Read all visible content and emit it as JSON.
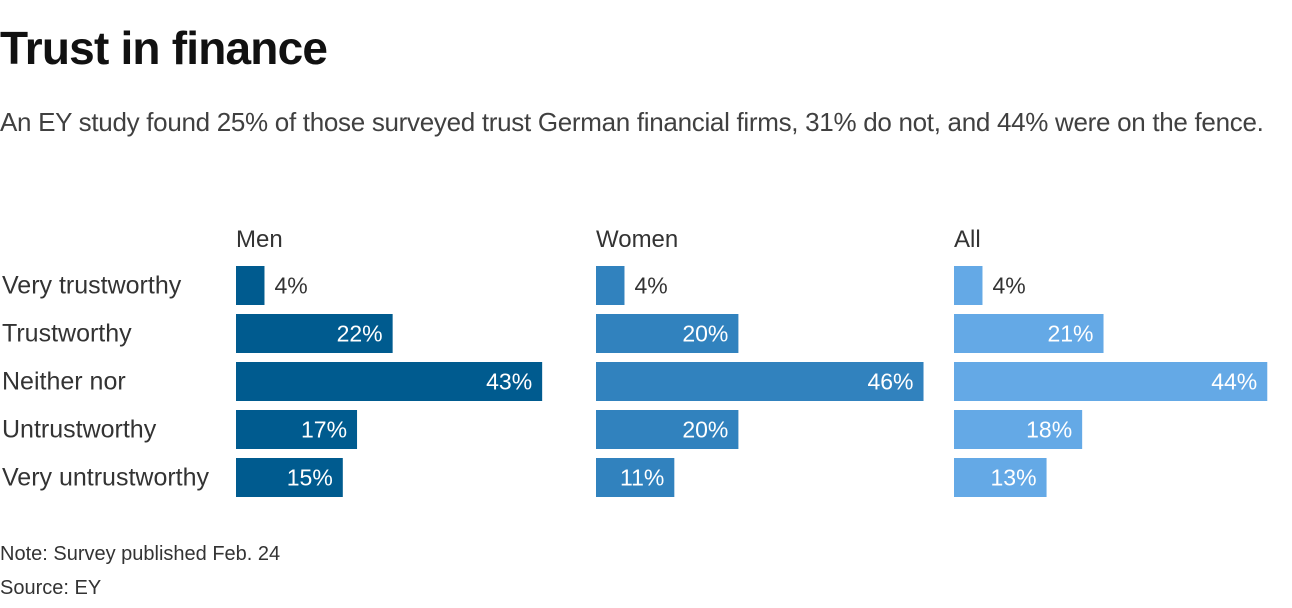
{
  "header": {
    "title": "Trust in finance",
    "subtitle": "An EY study found 25% of those surveyed trust German financial firms, 31% do not, and 44% were on the fence."
  },
  "chart_data": {
    "type": "bar",
    "orientation": "horizontal",
    "layout": "small-multiples",
    "categories": [
      "Very trustworthy",
      "Trustworthy",
      "Neither nor",
      "Untrustworthy",
      "Very untrustworthy"
    ],
    "series": [
      {
        "name": "Men",
        "color": "#005b8f",
        "values": [
          4,
          22,
          43,
          17,
          15
        ],
        "labels": [
          "4%",
          "22%",
          "43%",
          "17%",
          "15%"
        ]
      },
      {
        "name": "Women",
        "color": "#3182be",
        "values": [
          4,
          20,
          46,
          20,
          11
        ],
        "labels": [
          "4%",
          "20%",
          "46%",
          "20%",
          "11%"
        ]
      },
      {
        "name": "All",
        "color": "#64a9e6",
        "values": [
          4,
          21,
          44,
          18,
          13
        ],
        "labels": [
          "4%",
          "21%",
          "44%",
          "18%",
          "13%"
        ]
      }
    ],
    "value_unit": "%",
    "xlim": [
      0,
      46
    ],
    "grid": false,
    "legend": "none"
  },
  "footer": {
    "note": "Note: Survey published Feb. 24",
    "source": "Source: EY"
  }
}
